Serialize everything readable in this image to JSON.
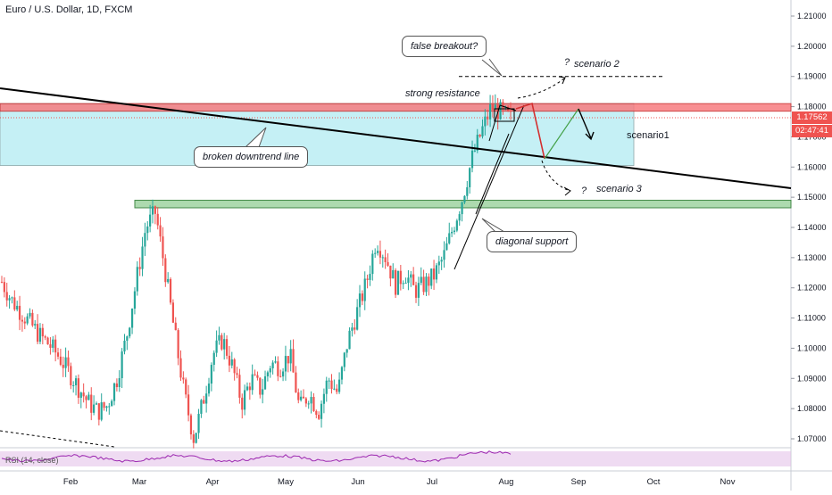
{
  "header": {
    "title": "Euro / U.S. Dollar, 1D, FXCM"
  },
  "indicator": {
    "label": "RSI (14, close)"
  },
  "price_badge": {
    "value": "1.17562",
    "timer": "02:47:41",
    "color": "#ef5350"
  },
  "annotations": {
    "false_breakout": "false breakout?",
    "strong_resistance": "strong resistance",
    "broken_downtrend": "broken downtrend line",
    "diagonal_support": "diagonal support",
    "scenario1": "scenario1",
    "scenario2": "scenario 2",
    "scenario3": "scenario 3",
    "question_mark": "?"
  },
  "colors": {
    "up": "#26a69a",
    "down": "#ef5350",
    "resistance_zone": "#f77c80",
    "support_zone": "#a5d6a7",
    "scenario_box": "#b2ebf2",
    "rsi_band": "#e1bee7",
    "rsi_line": "#9c27b0"
  },
  "chart_data": {
    "type": "candlestick",
    "x_axis": {
      "tick_labels": [
        "Feb",
        "Mar",
        "Apr",
        "May",
        "Jun",
        "Jul",
        "Aug",
        "Sep",
        "Oct",
        "Nov"
      ]
    },
    "y_axis": {
      "ylim": [
        1.065,
        1.215
      ],
      "tick_labels": [
        "1.21000",
        "1.20000",
        "1.19000",
        "1.18000",
        "1.17000",
        "1.16000",
        "1.15000",
        "1.14000",
        "1.13000",
        "1.12000",
        "1.11000",
        "1.10000",
        "1.09000",
        "1.08000",
        "1.07000"
      ]
    },
    "price_path": [
      1.122,
      1.116,
      1.112,
      1.108,
      1.104,
      1.101,
      1.097,
      1.092,
      1.087,
      1.082,
      1.079,
      1.081,
      1.09,
      1.104,
      1.122,
      1.14,
      1.145,
      1.126,
      1.105,
      1.085,
      1.07,
      1.083,
      1.098,
      1.103,
      1.094,
      1.082,
      1.09,
      1.086,
      1.095,
      1.094,
      1.098,
      1.08,
      1.085,
      1.079,
      1.09,
      1.085,
      1.102,
      1.112,
      1.122,
      1.136,
      1.13,
      1.121,
      1.125,
      1.119,
      1.121,
      1.124,
      1.13,
      1.14,
      1.15,
      1.163,
      1.172,
      1.18,
      1.178,
      1.176
    ],
    "resistance_zone": [
      1.1785,
      1.181
    ],
    "support_zone": [
      1.1465,
      1.149
    ],
    "scenario_levels": {
      "scenario1_top": 1.181,
      "scenario1_bottom": 1.1605,
      "scenario2": 1.19,
      "scenario3": 1.15
    },
    "rsi": {
      "band": [
        30,
        70
      ]
    }
  }
}
